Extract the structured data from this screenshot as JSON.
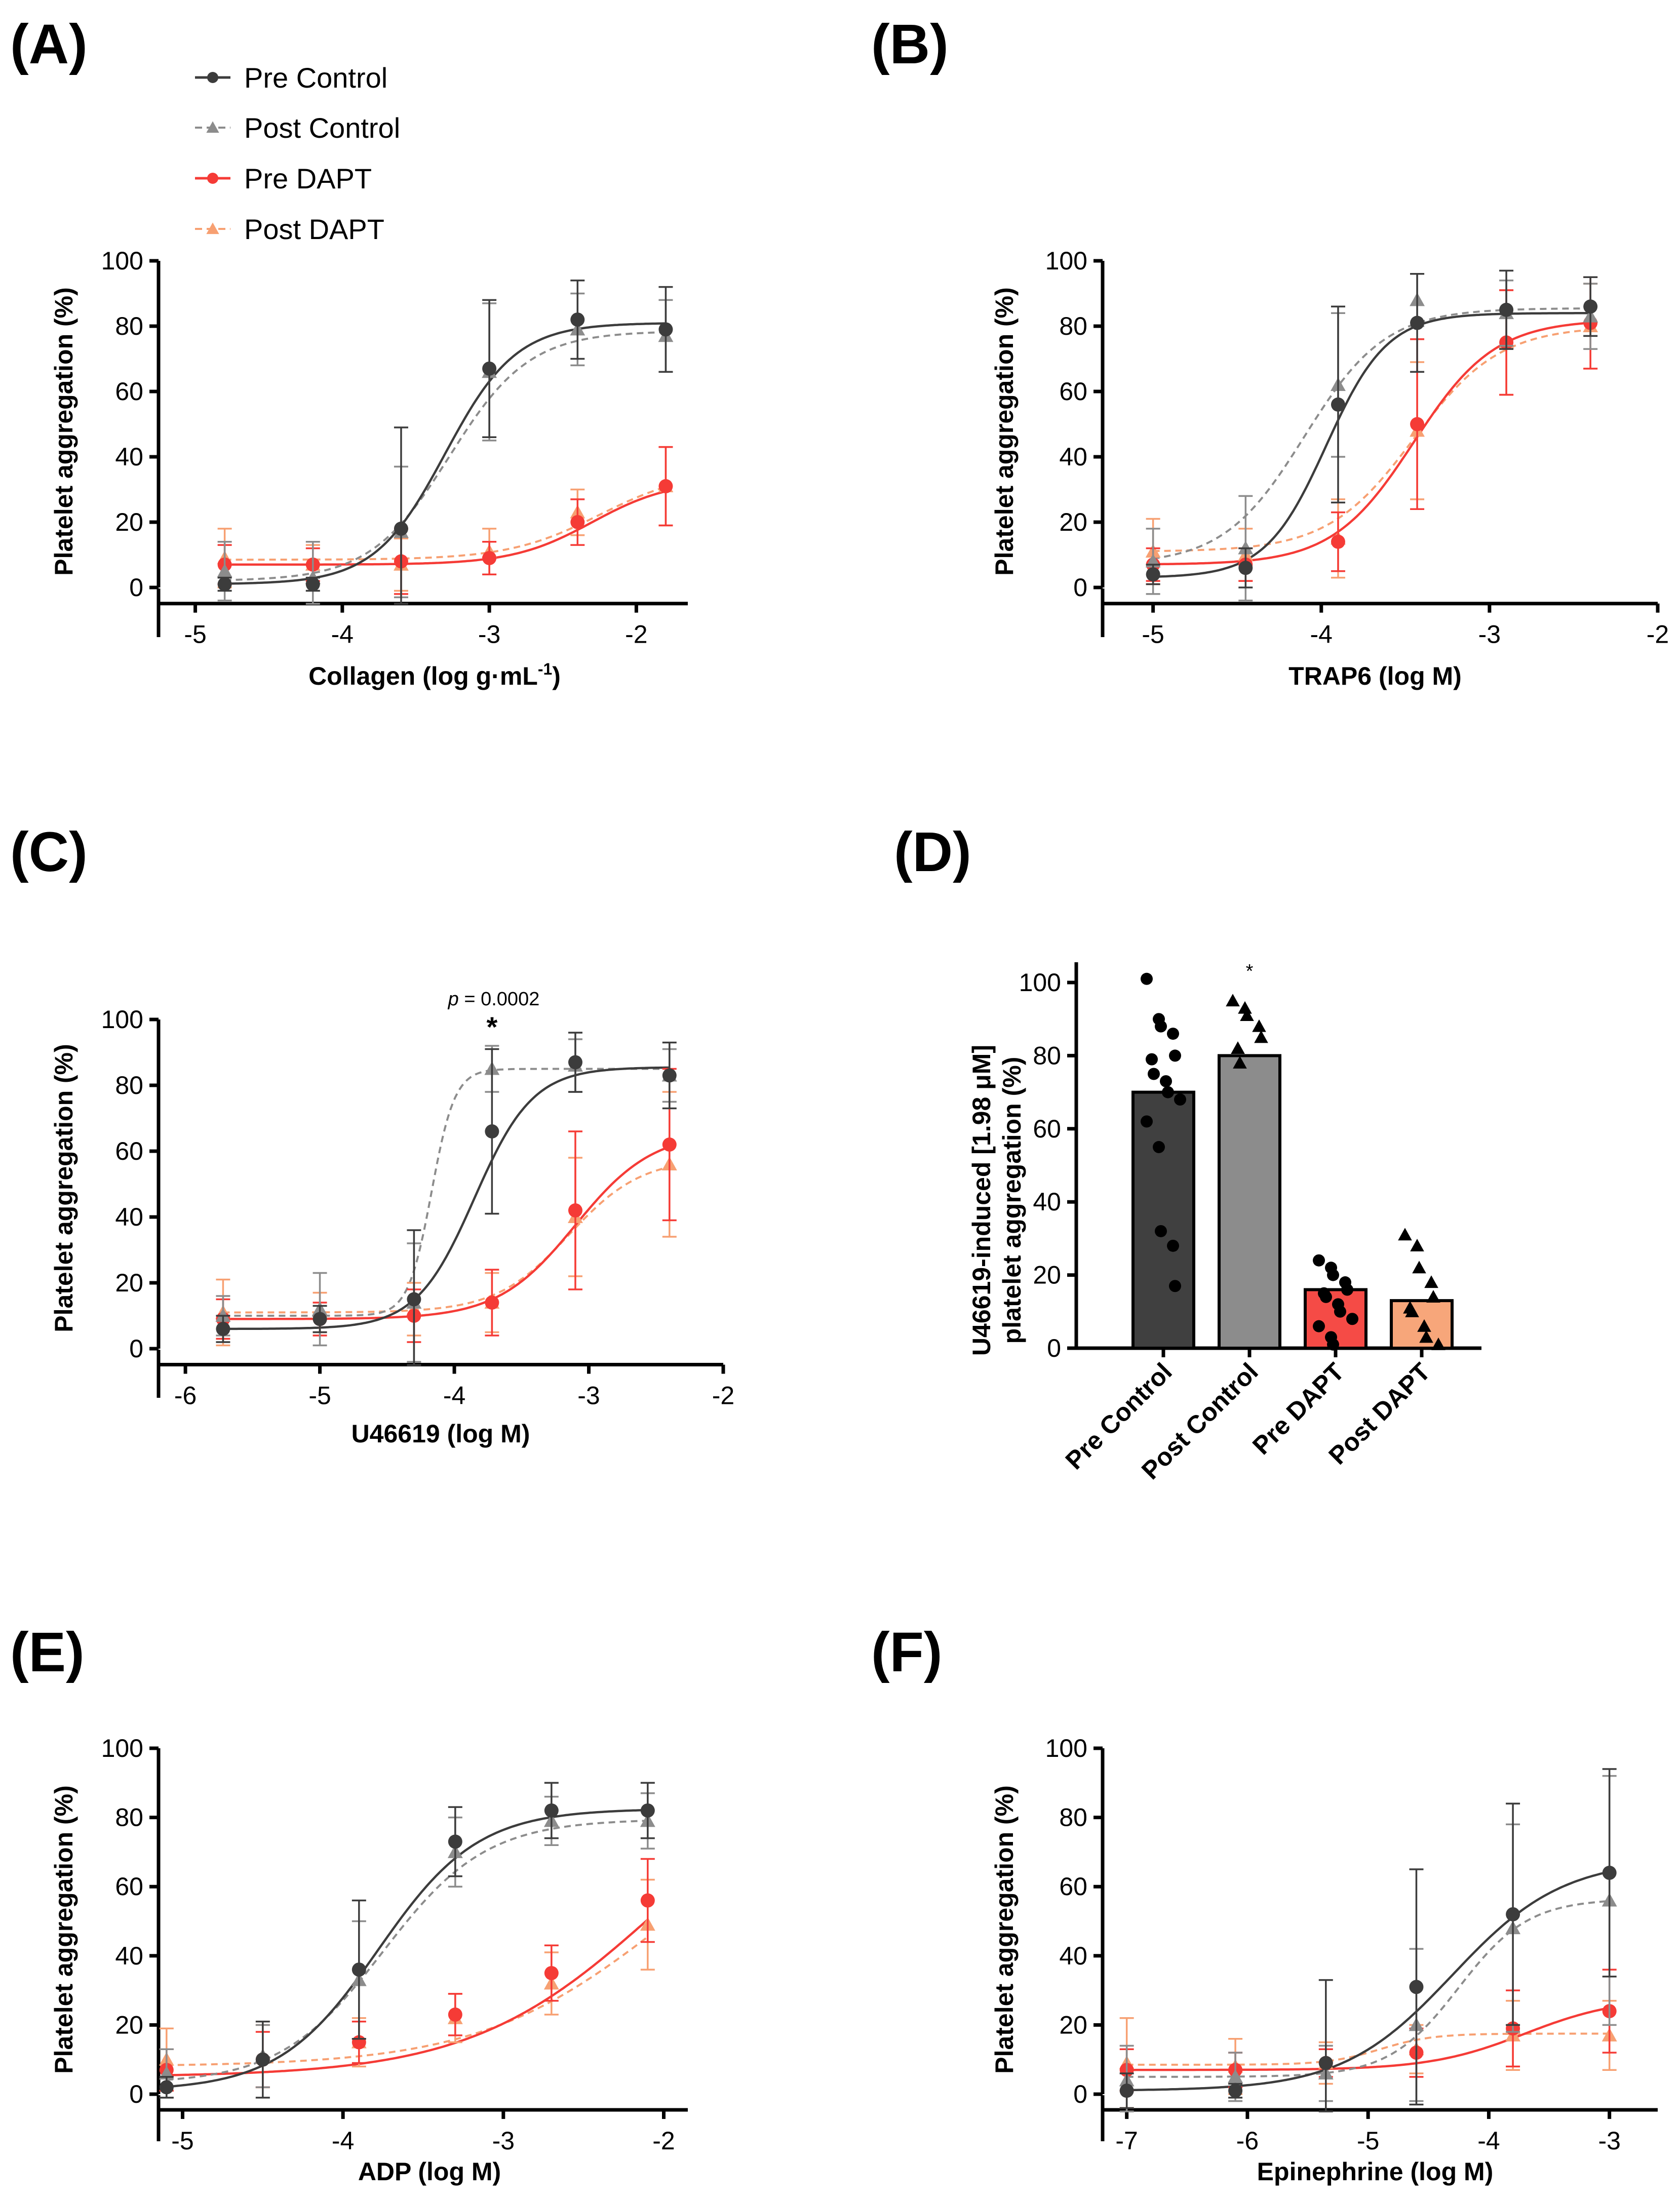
{
  "figure": {
    "legend": [
      {
        "name": "Pre Control",
        "color": "#3c3c3c",
        "marker": "circle",
        "dash": false
      },
      {
        "name": "Post Control",
        "color": "#8c8c8c",
        "marker": "triangle",
        "dash": true
      },
      {
        "name": "Pre DAPT",
        "color": "#f53b36",
        "marker": "circle",
        "dash": false
      },
      {
        "name": "Post DAPT",
        "color": "#f7a072",
        "marker": "triangle",
        "dash": true
      }
    ]
  },
  "chart_data": [
    {
      "id": "A",
      "panel_label": "(A)",
      "type": "line",
      "xlabel": "Collagen (log g·mL",
      "xlabel_sup": "-1",
      "xlabel_tail": ")",
      "ylabel": "Platelet aggregation (%)",
      "xlim": [
        -5.25,
        -1.65
      ],
      "ylim": [
        0,
        100
      ],
      "xticks": [
        -5,
        -4,
        -3,
        -2
      ],
      "yticks": [
        0,
        20,
        40,
        60,
        80,
        100
      ],
      "x": [
        -4.8,
        -4.2,
        -3.6,
        -3.0,
        -2.4,
        -1.8
      ],
      "series": [
        {
          "name": "Pre Control",
          "values": [
            1,
            1,
            18,
            67,
            82,
            79
          ],
          "errors": [
            2,
            2,
            31,
            21,
            12,
            13
          ]
        },
        {
          "name": "Post Control",
          "values": [
            5,
            3,
            17,
            66,
            79,
            77
          ],
          "errors": [
            9,
            11,
            20,
            21,
            11,
            11
          ]
        },
        {
          "name": "Pre DAPT",
          "values": [
            7,
            7,
            8,
            9,
            20,
            31
          ],
          "errors": [
            6,
            5,
            10,
            5,
            7,
            12
          ]
        },
        {
          "name": "Post DAPT",
          "values": [
            9,
            7,
            7,
            11,
            23,
            31
          ],
          "errors": [
            9,
            6,
            8,
            7,
            7,
            12
          ]
        }
      ],
      "fits": [
        {
          "name": "Pre Control",
          "bottom": 1,
          "top": 81,
          "ec50": -3.3,
          "hill": 1.8
        },
        {
          "name": "Post Control",
          "bottom": 2,
          "top": 78.5,
          "ec50": -3.27,
          "hill": 1.6
        },
        {
          "name": "Pre DAPT",
          "bottom": 7,
          "top": 33,
          "ec50": -2.3,
          "hill": 1.6
        },
        {
          "name": "Post DAPT",
          "bottom": 8.5,
          "top": 36,
          "ec50": -2.25,
          "hill": 1.4
        }
      ]
    },
    {
      "id": "B",
      "panel_label": "(B)",
      "type": "line",
      "xlabel": "TRAP6 (log M)",
      "ylabel": "Platelet aggregation (%)",
      "xlim": [
        -5.3,
        -2.0
      ],
      "ylim": [
        0,
        100
      ],
      "xticks": [
        -5,
        -4,
        -3,
        -2
      ],
      "yticks": [
        0,
        20,
        40,
        60,
        80,
        100
      ],
      "x": [
        -5.0,
        -4.45,
        -3.9,
        -3.43,
        -2.9,
        -2.4
      ],
      "series": [
        {
          "name": "Pre Control",
          "values": [
            4,
            6,
            56,
            81,
            85,
            86
          ],
          "errors": [
            3,
            6,
            30,
            15,
            12,
            9
          ]
        },
        {
          "name": "Post Control",
          "values": [
            8,
            12,
            62,
            88,
            84,
            83
          ],
          "errors": [
            10,
            16,
            22,
            8,
            10,
            10
          ]
        },
        {
          "name": "Pre DAPT",
          "values": [
            7,
            7,
            14,
            50,
            75,
            81
          ],
          "errors": [
            5,
            5,
            9,
            26,
            16,
            14
          ]
        },
        {
          "name": "Post DAPT",
          "values": [
            11,
            10,
            15,
            48,
            75,
            80
          ],
          "errors": [
            10,
            8,
            12,
            21,
            16,
            13
          ]
        }
      ],
      "fits": [
        {
          "name": "Pre Control",
          "bottom": 3,
          "top": 84,
          "ec50": -3.97,
          "hill": 2.4
        },
        {
          "name": "Post Control",
          "bottom": 7,
          "top": 85.5,
          "ec50": -4.1,
          "hill": 1.8
        },
        {
          "name": "Pre DAPT",
          "bottom": 7,
          "top": 82,
          "ec50": -3.45,
          "hill": 1.8
        },
        {
          "name": "Post DAPT",
          "bottom": 11,
          "top": 80,
          "ec50": -3.45,
          "hill": 1.7
        }
      ]
    },
    {
      "id": "C",
      "panel_label": "(C)",
      "type": "line",
      "xlabel": "U46619 (log M)",
      "ylabel": "Platelet aggregation (%)",
      "xlim": [
        -6.2,
        -2.0
      ],
      "ylim": [
        0,
        100
      ],
      "xticks": [
        -6,
        -5,
        -4,
        -3,
        -2
      ],
      "yticks": [
        0,
        20,
        40,
        60,
        80,
        100
      ],
      "x": [
        -5.72,
        -5.0,
        -4.3,
        -3.72,
        -3.1,
        -2.4
      ],
      "annotation_p_italic": "p",
      "annotation_p_text": " = 0.0002",
      "annotation_star": "*",
      "series": [
        {
          "name": "Pre Control",
          "values": [
            6,
            9,
            15,
            66,
            87,
            83
          ],
          "errors": [
            4,
            4,
            21,
            25,
            9,
            10
          ]
        },
        {
          "name": "Post Control",
          "values": [
            10,
            12,
            14,
            85,
            86,
            83
          ],
          "errors": [
            6,
            11,
            18,
            7,
            8,
            8
          ]
        },
        {
          "name": "Pre DAPT",
          "values": [
            9,
            9,
            10,
            14,
            42,
            62
          ],
          "errors": [
            6,
            5,
            8,
            10,
            24,
            23
          ]
        },
        {
          "name": "Post DAPT",
          "values": [
            11,
            11,
            12,
            14,
            40,
            56
          ],
          "errors": [
            10,
            6,
            8,
            9,
            18,
            22
          ]
        }
      ],
      "fits": [
        {
          "name": "Pre Control",
          "bottom": 6,
          "top": 85.5,
          "ec50": -3.85,
          "hill": 2.0
        },
        {
          "name": "Post Control",
          "bottom": 10,
          "top": 85,
          "ec50": -4.17,
          "hill": 5.0
        },
        {
          "name": "Pre DAPT",
          "bottom": 9,
          "top": 66,
          "ec50": -3.1,
          "hill": 1.5
        },
        {
          "name": "Post DAPT",
          "bottom": 11,
          "top": 58,
          "ec50": -3.15,
          "hill": 1.6
        }
      ]
    },
    {
      "id": "D",
      "panel_label": "(D)",
      "type": "bar",
      "ylabel_line1": "U46619-induced [1.98 μM]",
      "ylabel_line2": "platelet aggregation (%)",
      "ylim": [
        0,
        100
      ],
      "yticks": [
        0,
        20,
        40,
        60,
        80,
        100
      ],
      "categories": [
        "Pre Control",
        "Post Control",
        "Pre DAPT",
        "Post DAPT"
      ],
      "values": [
        70,
        80,
        16,
        13
      ],
      "colors": [
        "#404040",
        "#8c8c8c",
        "#f54b46",
        "#f7a67a"
      ],
      "markers": [
        "circle",
        "triangle",
        "circle",
        "triangle"
      ],
      "points": [
        [
          101,
          90,
          88,
          86,
          80,
          79,
          75,
          73,
          70,
          68,
          62,
          55,
          32,
          28,
          17
        ],
        [
          95,
          93,
          91,
          88,
          85,
          82,
          78
        ],
        [
          24,
          22,
          20,
          18,
          16,
          15,
          14,
          12,
          10,
          8,
          6,
          3,
          1
        ],
        [
          31,
          28,
          22,
          18,
          14,
          11,
          10,
          6,
          3,
          1
        ]
      ],
      "annotation_star": "*"
    },
    {
      "id": "E",
      "panel_label": "(E)",
      "type": "line",
      "xlabel": "ADP (log M)",
      "ylabel": "Platelet aggregation (%)",
      "xlim": [
        -5.15,
        -1.85
      ],
      "ylim": [
        0,
        100
      ],
      "xticks": [
        -5,
        -4,
        -3,
        -2
      ],
      "yticks": [
        0,
        20,
        40,
        60,
        80,
        100
      ],
      "x": [
        -5.1,
        -4.5,
        -3.9,
        -3.3,
        -2.7,
        -2.1
      ],
      "series": [
        {
          "name": "Pre Control",
          "values": [
            2,
            10,
            36,
            73,
            82,
            82
          ],
          "errors": [
            3,
            11,
            20,
            10,
            8,
            8
          ]
        },
        {
          "name": "Post Control",
          "values": [
            6,
            11,
            33,
            70,
            79,
            79
          ],
          "errors": [
            7,
            9,
            17,
            10,
            7,
            8
          ]
        },
        {
          "name": "Pre DAPT",
          "values": [
            7,
            10,
            15,
            23,
            35,
            56
          ],
          "errors": [
            6,
            8,
            6,
            6,
            8,
            12
          ]
        },
        {
          "name": "Post DAPT",
          "values": [
            10,
            11,
            15,
            22,
            32,
            49
          ],
          "errors": [
            9,
            9,
            7,
            7,
            9,
            13
          ]
        }
      ],
      "fits": [
        {
          "name": "Pre Control",
          "bottom": 1,
          "top": 82.5,
          "ec50": -3.78,
          "hill": 1.4
        },
        {
          "name": "Post Control",
          "bottom": 3,
          "top": 79.5,
          "ec50": -3.75,
          "hill": 1.35
        },
        {
          "name": "Pre DAPT",
          "bottom": 5,
          "top": 100,
          "ec50": -2.05,
          "hill": 0.75
        },
        {
          "name": "Post DAPT",
          "bottom": 8,
          "top": 90,
          "ec50": -2.0,
          "hill": 0.75
        }
      ]
    },
    {
      "id": "F",
      "panel_label": "(F)",
      "type": "line",
      "xlabel": "Epinephrine (log M)",
      "ylabel": "Platelet aggregation (%)",
      "xlim": [
        -7.2,
        -2.6
      ],
      "ylim": [
        0,
        100
      ],
      "xticks": [
        -7,
        -6,
        -5,
        -4,
        -3
      ],
      "yticks": [
        0,
        20,
        40,
        60,
        80,
        100
      ],
      "x": [
        -7.0,
        -6.1,
        -5.35,
        -4.6,
        -3.8,
        -3.0
      ],
      "series": [
        {
          "name": "Pre Control",
          "values": [
            1,
            1,
            9,
            31,
            52,
            64
          ],
          "errors": [
            5,
            2,
            24,
            34,
            32,
            30
          ]
        },
        {
          "name": "Post Control",
          "values": [
            4,
            5,
            6,
            20,
            48,
            56
          ],
          "errors": [
            10,
            7,
            8,
            22,
            30,
            36
          ]
        },
        {
          "name": "Pre DAPT",
          "values": [
            7,
            7,
            9,
            12,
            19,
            24
          ],
          "errors": [
            6,
            5,
            4,
            7,
            11,
            12
          ]
        },
        {
          "name": "Post DAPT",
          "values": [
            9,
            8,
            9,
            13,
            17,
            17
          ],
          "errors": [
            13,
            8,
            6,
            7,
            10,
            10
          ]
        }
      ],
      "fits": [
        {
          "name": "Pre Control",
          "bottom": 1,
          "top": 68,
          "ec50": -4.3,
          "hill": 0.95
        },
        {
          "name": "Post Control",
          "bottom": 5,
          "top": 56.5,
          "ec50": -4.25,
          "hill": 1.5
        },
        {
          "name": "Pre DAPT",
          "bottom": 7,
          "top": 28,
          "ec50": -3.7,
          "hill": 1.1
        },
        {
          "name": "Post DAPT",
          "bottom": 8.5,
          "top": 17.5,
          "ec50": -4.9,
          "hill": 2.0
        }
      ]
    }
  ]
}
